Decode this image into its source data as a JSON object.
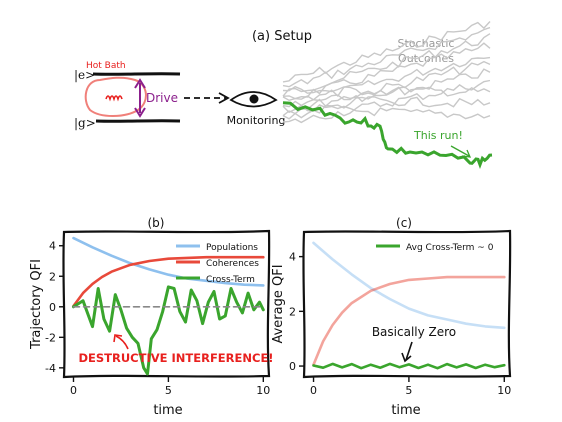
{
  "setup": {
    "title": "(a) Setup",
    "hot_bath": "Hot Bath",
    "level_e": "|e>",
    "level_g": "|g>",
    "drive": "Drive",
    "monitoring": "Monitoring",
    "stochastic": "Stochastic",
    "outcomes": "Outcomes",
    "this_run": "This run!"
  },
  "colors": {
    "populations": "#8ec0ee",
    "coherences": "#e8493a",
    "cross_term": "#3aa52d",
    "bath": "#f0807a",
    "drive": "#8b1f8c",
    "gray_runs": "#c8c8c8",
    "annotation_red": "#e8201e"
  },
  "chart_data": [
    {
      "type": "line",
      "panel": "(b)",
      "title": "(b)",
      "xlabel": "time",
      "ylabel": "Trajectory QFI",
      "xlim": [
        -0.5,
        10.3
      ],
      "ylim": [
        -4.6,
        4.9
      ],
      "xticks": [
        "0",
        "5",
        "10"
      ],
      "yticks": [
        "-4",
        "-2",
        "0",
        "2",
        "4"
      ],
      "legend_position": "top-right",
      "annotation": "DESTRUCTIVE INTERFERENCE!",
      "series": [
        {
          "name": "Populations",
          "x": [
            0,
            1,
            2,
            3,
            4,
            5,
            6,
            7,
            8,
            9,
            10
          ],
          "y": [
            4.5,
            3.9,
            3.35,
            2.85,
            2.45,
            2.1,
            1.85,
            1.7,
            1.55,
            1.45,
            1.4
          ]
        },
        {
          "name": "Coherences",
          "x": [
            0,
            0.5,
            1,
            1.5,
            2,
            3,
            4,
            5,
            6,
            7,
            8,
            9,
            10
          ],
          "y": [
            0.05,
            0.9,
            1.5,
            1.95,
            2.3,
            2.75,
            3.0,
            3.15,
            3.2,
            3.25,
            3.25,
            3.25,
            3.25
          ]
        },
        {
          "name": "Cross-Term",
          "x": [
            0,
            0.5,
            1.0,
            1.3,
            1.6,
            1.9,
            2.2,
            2.5,
            2.8,
            3.1,
            3.4,
            3.7,
            3.9,
            4.1,
            4.4,
            4.7,
            5.0,
            5.3,
            5.6,
            5.9,
            6.2,
            6.5,
            6.8,
            7.1,
            7.4,
            7.7,
            8.0,
            8.3,
            8.6,
            8.9,
            9.2,
            9.5,
            9.8,
            10.0
          ],
          "y": [
            0,
            0.4,
            -1.3,
            1.2,
            -0.8,
            -1.6,
            0.8,
            -0.2,
            -1.4,
            -2.0,
            -2.4,
            -4.0,
            -4.4,
            -2.1,
            -1.5,
            -0.3,
            1.3,
            1.2,
            -0.3,
            -1.0,
            1.1,
            0.4,
            -1.1,
            0.3,
            1.0,
            -0.8,
            -0.6,
            1.2,
            0.3,
            -0.4,
            0.9,
            -0.2,
            0.3,
            -0.2
          ]
        },
        {
          "name": "zero reference",
          "x": [
            0,
            10
          ],
          "y": [
            0,
            0
          ]
        }
      ]
    },
    {
      "type": "line",
      "panel": "(c)",
      "title": "(c)",
      "xlabel": "time",
      "ylabel": "Average QFI",
      "xlim": [
        -0.5,
        10.3
      ],
      "ylim": [
        -0.4,
        4.9
      ],
      "xticks": [
        "0",
        "5",
        "10"
      ],
      "yticks": [
        "0",
        "2",
        "4"
      ],
      "legend_position": "top-right",
      "annotation": "Basically Zero",
      "series": [
        {
          "name": "populations (faded)",
          "x": [
            0,
            1,
            2,
            3,
            4,
            5,
            6,
            7,
            8,
            9,
            10
          ],
          "y": [
            4.5,
            3.9,
            3.35,
            2.85,
            2.45,
            2.1,
            1.85,
            1.7,
            1.55,
            1.45,
            1.4
          ]
        },
        {
          "name": "coherences (faded)",
          "x": [
            0,
            0.5,
            1,
            1.5,
            2,
            3,
            4,
            5,
            6,
            7,
            8,
            9,
            10
          ],
          "y": [
            0.05,
            0.9,
            1.5,
            1.95,
            2.3,
            2.75,
            3.0,
            3.15,
            3.2,
            3.25,
            3.25,
            3.25,
            3.25
          ]
        },
        {
          "name": "Avg Cross-Term ~ 0",
          "x": [
            0,
            0.5,
            1,
            1.5,
            2,
            2.5,
            3,
            3.5,
            4,
            4.5,
            5,
            5.5,
            6,
            6.5,
            7,
            7.5,
            8,
            8.5,
            9,
            9.5,
            10
          ],
          "y": [
            0.02,
            -0.06,
            0.08,
            -0.05,
            0.07,
            -0.08,
            0.05,
            -0.06,
            0.08,
            -0.04,
            0.06,
            -0.07,
            0.05,
            -0.08,
            0.07,
            -0.05,
            0.06,
            -0.07,
            0.05,
            -0.04,
            0.03
          ]
        }
      ]
    }
  ]
}
